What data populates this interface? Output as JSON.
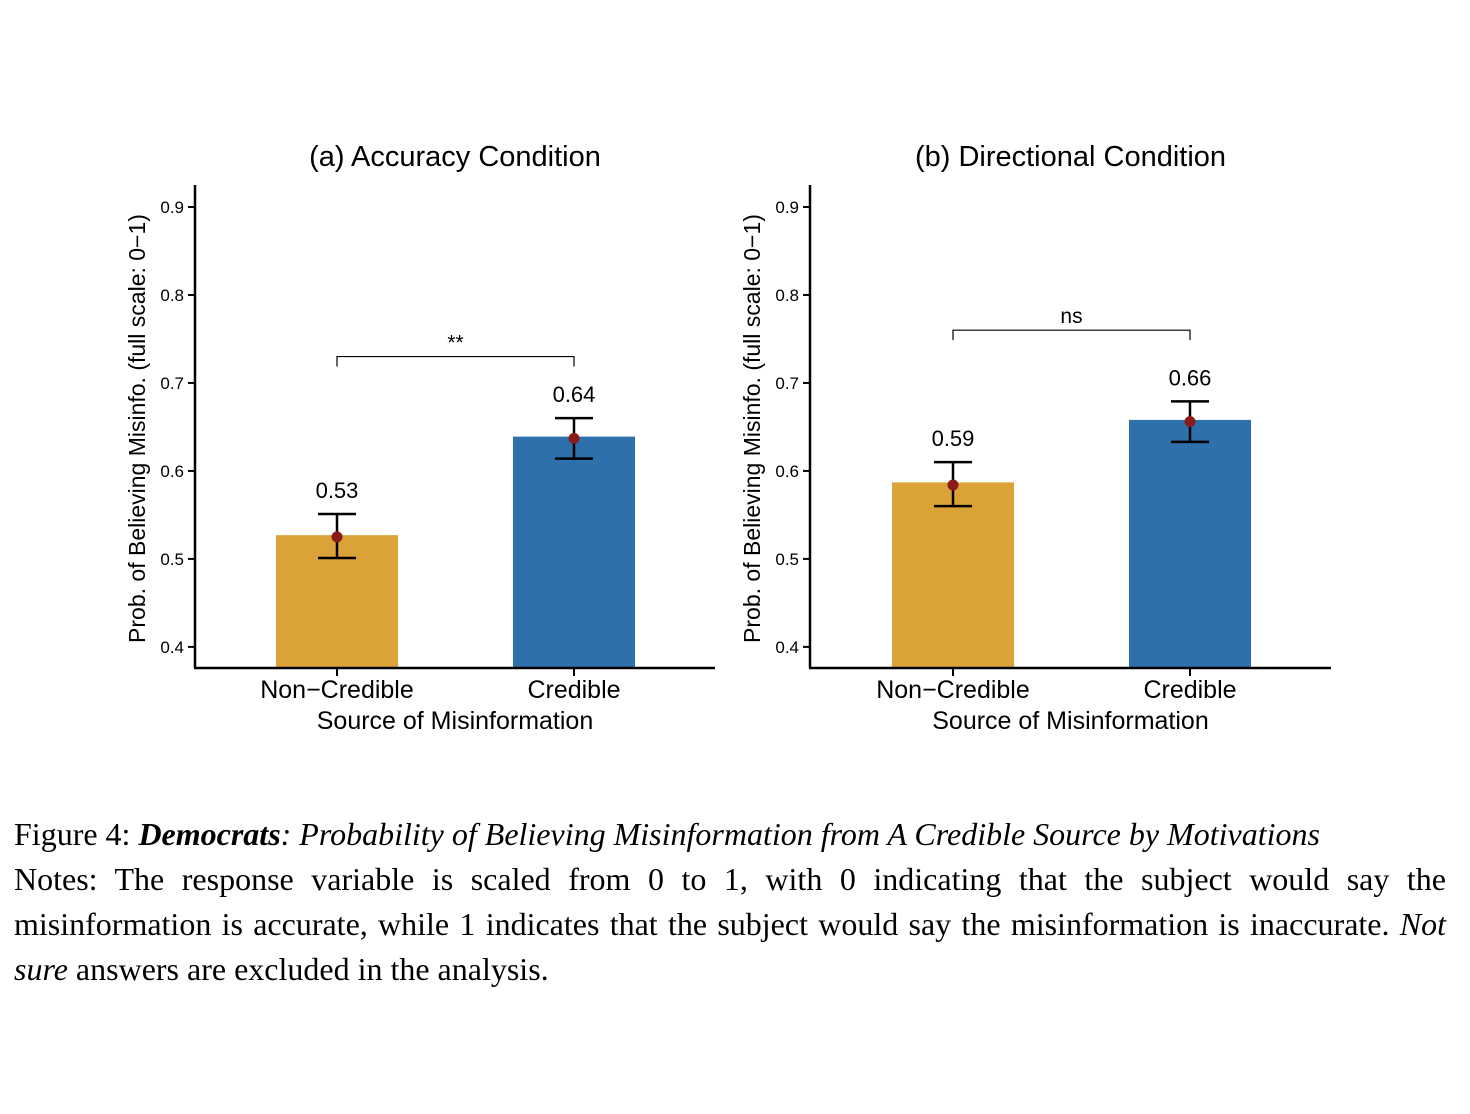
{
  "chart_data": [
    {
      "type": "bar",
      "title": "(a) Accuracy Condition",
      "xlabel": "Source of Misinformation",
      "ylabel": "Prob. of Believing Misinfo. (full scale: 0−1)",
      "categories": [
        "Non−Credible",
        "Credible"
      ],
      "values": [
        0.527,
        0.639
      ],
      "point_estimates": [
        0.525,
        0.637
      ],
      "error_low": [
        0.501,
        0.614
      ],
      "error_high": [
        0.551,
        0.66
      ],
      "data_labels": [
        "0.53",
        "0.64"
      ],
      "significance": {
        "label": "**",
        "y": 0.73
      },
      "ylim": [
        0.376,
        0.925
      ],
      "yticks": [
        0.4,
        0.5,
        0.6,
        0.7,
        0.8,
        0.9
      ],
      "ytick_labels": [
        "0.4",
        "0.5",
        "0.6",
        "0.7",
        "0.8",
        "0.9"
      ],
      "colors": [
        "#DBA238",
        "#2E70AB"
      ],
      "point_color": "#8B1A1A",
      "grid": false
    },
    {
      "type": "bar",
      "title": "(b) Directional Condition",
      "xlabel": "Source of Misinformation",
      "ylabel": "Prob. of Believing Misinfo. (full scale: 0−1)",
      "categories": [
        "Non−Credible",
        "Credible"
      ],
      "values": [
        0.587,
        0.658
      ],
      "point_estimates": [
        0.584,
        0.656
      ],
      "error_low": [
        0.56,
        0.633
      ],
      "error_high": [
        0.61,
        0.679
      ],
      "data_labels": [
        "0.59",
        "0.66"
      ],
      "significance": {
        "label": "ns",
        "y": 0.76
      },
      "ylim": [
        0.376,
        0.925
      ],
      "yticks": [
        0.4,
        0.5,
        0.6,
        0.7,
        0.8,
        0.9
      ],
      "ytick_labels": [
        "0.4",
        "0.5",
        "0.6",
        "0.7",
        "0.8",
        "0.9"
      ],
      "colors": [
        "#DBA238",
        "#2E70AB"
      ],
      "point_color": "#8B1A1A",
      "grid": false
    }
  ],
  "caption": {
    "figure_label": "Figure 4:",
    "subject": "Democrats",
    "title_rest": ": Probability of Believing Misinformation from A Credible Source by Motivations",
    "notes_part1": "Notes:  The response variable is scaled from 0 to 1, with 0 indicating that the subject would say the misinformation is accurate, while 1 indicates that the subject would say the misinformation is inaccurate.",
    "notes_italic": "Not sure",
    "notes_part2": "answers are excluded in the analysis."
  }
}
